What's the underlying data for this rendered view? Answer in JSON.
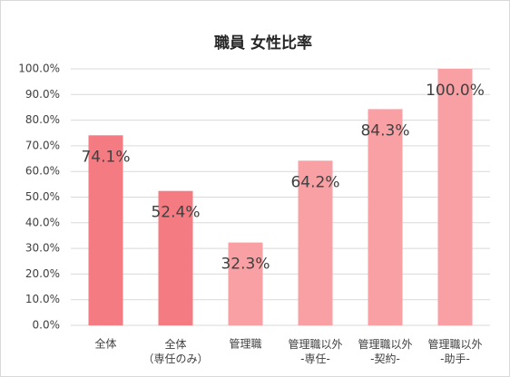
{
  "chart_data": {
    "type": "bar",
    "title": "職員 女性比率",
    "categories": [
      "全体",
      "全体\n（専任のみ）",
      "管理職",
      "管理職以外\n-専任-",
      "管理職以外\n-契約-",
      "管理職以外\n-助手-"
    ],
    "values": [
      74.1,
      52.4,
      32.3,
      64.2,
      84.3,
      100.0
    ],
    "value_labels": [
      "74.1%",
      "52.4%",
      "32.3%",
      "64.2%",
      "84.3%",
      "100.0%"
    ],
    "colors": [
      "#f47b82",
      "#f47b82",
      "#f8a0a4",
      "#f8a0a4",
      "#f8a0a4",
      "#f8a0a4"
    ],
    "ylim": [
      0,
      100
    ],
    "yticks": [
      {
        "value": 0,
        "label": "0.0%"
      },
      {
        "value": 10,
        "label": "10.0%"
      },
      {
        "value": 20,
        "label": "20.0%"
      },
      {
        "value": 30,
        "label": "30.0%"
      },
      {
        "value": 40,
        "label": "40.0%"
      },
      {
        "value": 50,
        "label": "50.0%"
      },
      {
        "value": 60,
        "label": "60.0%"
      },
      {
        "value": 70,
        "label": "70.0%"
      },
      {
        "value": 80,
        "label": "80.0%"
      },
      {
        "value": 90,
        "label": "90.0%"
      },
      {
        "value": 100,
        "label": "100.0%"
      }
    ],
    "grid": true
  }
}
